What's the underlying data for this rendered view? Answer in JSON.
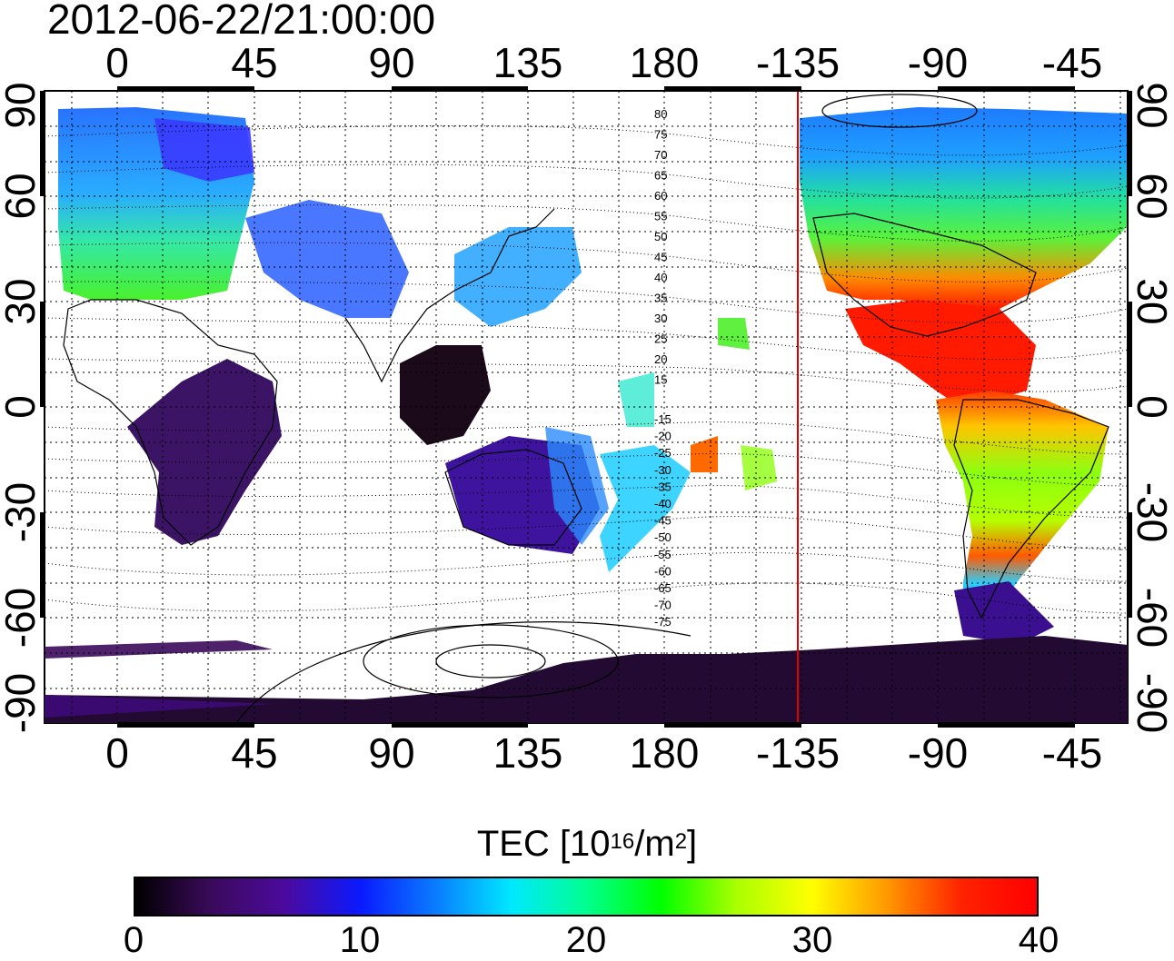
{
  "timestamp": "2012-06-22/21:00:00",
  "map": {
    "top_lon_ticks": [
      "0",
      "45",
      "90",
      "135",
      "180",
      "-135",
      "-90",
      "-45"
    ],
    "bottom_lon_ticks": [
      "0",
      "45",
      "90",
      "135",
      "180",
      "-135",
      "-90",
      "-45"
    ],
    "left_lat_ticks": [
      "90",
      "60",
      "30",
      "0",
      "-30",
      "-60",
      "-90"
    ],
    "right_lat_ticks": [
      "90",
      "60",
      "30",
      "0",
      "-30",
      "-60",
      "-90"
    ],
    "contour_labels": [
      "80",
      "75",
      "70",
      "65",
      "60",
      "55",
      "50",
      "45",
      "40",
      "35",
      "30",
      "25",
      "20",
      "15",
      "-15",
      "-20",
      "-25",
      "-30",
      "-35",
      "-40",
      "-45",
      "-50",
      "-55",
      "-60",
      "-65",
      "-70",
      "-75"
    ],
    "terminator_color": "#e00000",
    "terminator_lon": -135
  },
  "colorbar": {
    "title_main": "TEC  [10",
    "title_exp": "16",
    "title_mid": "/m",
    "title_exp2": "2",
    "title_end": "]",
    "min": 0,
    "max": 40,
    "tick_labels": [
      "0",
      "10",
      "20",
      "30",
      "40"
    ],
    "colors": [
      "#000000",
      "#3a0a5a",
      "#4b0a9e",
      "#0a1aff",
      "#0a7cff",
      "#00e8ff",
      "#00ff90",
      "#00ff00",
      "#aaff00",
      "#ffff00",
      "#ff9900",
      "#ff2200",
      "#ff0000"
    ]
  }
}
